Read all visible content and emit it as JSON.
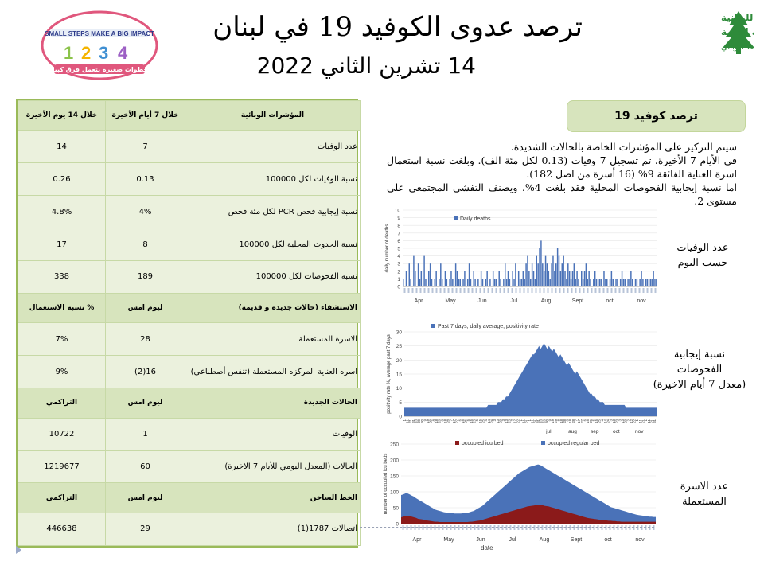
{
  "header": {
    "title": "ترصد عدوى الكوفيد 19 في لبنان",
    "date": "14 تشرين الثاني 2022"
  },
  "logo_left": {
    "arc_text": "SMALL STEPS MAKE A BIG IMPACT",
    "bottom_text": "خطوات صغيرة بتعمل فرق كبير"
  },
  "logo_right": {
    "line1": "الجمهورية اللبنانية",
    "line2": "وزارة الصحة العامة",
    "line3": "برنامج الترصد الوبائي"
  },
  "table": {
    "rows": [
      {
        "type": "header",
        "cells": [
          "المؤشرات الوبائية",
          "خلال 7 أيام الأخيرة",
          "خلال 14 يوم الأخيرة"
        ]
      },
      {
        "type": "data",
        "cells": [
          "عدد الوفيات",
          "7",
          "14"
        ]
      },
      {
        "type": "data",
        "cells": [
          "نسبة الوفيات لكل 100000",
          "0.13",
          "0.26"
        ]
      },
      {
        "type": "data",
        "cells": [
          "نسبة إيجابية فحص PCR لكل مئة فحص",
          "4%",
          "4.8%"
        ]
      },
      {
        "type": "data",
        "cells": [
          "نسبة الحدوث المحلية لكل 100000",
          "8",
          "17"
        ]
      },
      {
        "type": "data",
        "cells": [
          "نسبة الفحوصات لكل 100000",
          "189",
          "338"
        ]
      },
      {
        "type": "header",
        "cells": [
          "الاستشفاء (حالات جديدة و قديمة)",
          "ليوم امس",
          "% نسبة الاستعمال"
        ]
      },
      {
        "type": "data",
        "cells": [
          "الاسرة المستعملة",
          "28",
          "7%"
        ]
      },
      {
        "type": "data",
        "cells": [
          "اسره العناية المركزه المستعملة (تنفس أصطناعي)",
          "16(2)",
          "9%"
        ]
      },
      {
        "type": "header",
        "cells": [
          "الحالات الجديدة",
          "ليوم امس",
          "التراكمي"
        ]
      },
      {
        "type": "data",
        "cells": [
          "الوفيات",
          "1",
          "10722"
        ]
      },
      {
        "type": "data",
        "cells": [
          "الحالات (المعدل اليومي للأيام 7 الاخيرة)",
          "60",
          "1219677"
        ]
      },
      {
        "type": "header",
        "cells": [
          "الخط الساخن",
          "ليوم امس",
          "التراكمي"
        ]
      },
      {
        "type": "data",
        "cells": [
          "اتصالات 1787(1)",
          "29",
          "446638"
        ]
      }
    ]
  },
  "panel": {
    "tag": "ترصد كوفيد 19",
    "paragraphs": [
      "سيتم التركيز على المؤشرات الخاصة بالحالات الشديدة.",
      "في الأيام 7 الأخيرة، تم تسجيل 7 وفيات (0.13 لكل مئة الف). وبلغت نسبة استعمال اسرة العناية الفائقة 9% (16 أسرة من اصل 182).",
      "اما نسبة إيجابية الفحوصات المحلية فقد بلغت 4%. ويصنف التفشي المجتمعي على مستوى 2."
    ]
  },
  "side_labels": {
    "deaths": [
      "عدد الوفيات",
      "حسب اليوم"
    ],
    "positivity": [
      "نسبة إيجابية",
      "الفحوصات",
      "(معدل 7 أيام الاخيرة)"
    ],
    "beds": [
      "عدد الاسرة",
      "المستعملة"
    ]
  },
  "chart_data": [
    {
      "type": "bar",
      "legend": [
        "Daily deaths"
      ],
      "ylabel": "daily number of deaths",
      "ylim": [
        0,
        10
      ],
      "yticks": [
        "0",
        "1",
        "2",
        "3",
        "4",
        "5",
        "6",
        "7",
        "8",
        "9",
        "10"
      ],
      "months": [
        "Apr",
        "May",
        "Jun",
        "Jul",
        "Aug",
        "Sept",
        "oct",
        "nov"
      ],
      "values": [
        1,
        0,
        2,
        0,
        3,
        1,
        0,
        4,
        2,
        0,
        3,
        1,
        2,
        0,
        4,
        1,
        0,
        2,
        3,
        1,
        0,
        1,
        2,
        0,
        1,
        3,
        1,
        0,
        2,
        1,
        0,
        1,
        2,
        1,
        0,
        3,
        2,
        1,
        1,
        0,
        1,
        2,
        0,
        1,
        3,
        1,
        0,
        2,
        1,
        0,
        1,
        0,
        2,
        1,
        0,
        1,
        2,
        0,
        1,
        0,
        2,
        1,
        1,
        0,
        2,
        1,
        0,
        1,
        3,
        1,
        2,
        1,
        0,
        2,
        1,
        3,
        0,
        2,
        1,
        1,
        2,
        1,
        3,
        4,
        2,
        1,
        3,
        2,
        1,
        4,
        3,
        5,
        6,
        3,
        2,
        4,
        3,
        2,
        1,
        3,
        4,
        2,
        3,
        5,
        4,
        2,
        3,
        4,
        2,
        1,
        3,
        2,
        1,
        2,
        3,
        1,
        2,
        1,
        0,
        2,
        1,
        2,
        3,
        1,
        2,
        1,
        0,
        1,
        2,
        1,
        0,
        1,
        1,
        0,
        2,
        1,
        1,
        0,
        1,
        2,
        1,
        0,
        1,
        1,
        0,
        1,
        2,
        1,
        1,
        0,
        1,
        1,
        2,
        1,
        0,
        1,
        1,
        0,
        1,
        2,
        1,
        0,
        1,
        1,
        0,
        1,
        1,
        2,
        1,
        1
      ]
    },
    {
      "type": "area",
      "legend": [
        "Past 7 days, daily average, positivity rate"
      ],
      "ylabel": "positivity rate %, average past 7 days",
      "ylim": [
        0,
        30
      ],
      "yticks": [
        "0",
        "5",
        "10",
        "15",
        "20",
        "25",
        "30"
      ],
      "xticks": [
        "1",
        "11",
        "21",
        "31",
        "10",
        "20",
        "30",
        "9",
        "19",
        "29",
        "8",
        "18",
        "28",
        "8",
        "18",
        "28",
        "7",
        "17",
        "27",
        "6",
        "16",
        "26",
        "5",
        "15",
        "25",
        "5",
        "15",
        "25",
        "4",
        "14",
        "24",
        "3",
        "13",
        "23",
        "3",
        "13",
        "23",
        "2",
        "12",
        "22",
        "1",
        "11",
        "21",
        "1",
        "11",
        "21",
        "31",
        "10",
        "20",
        "30",
        "9",
        "19",
        "29",
        "8",
        "18",
        "28",
        "8",
        "18",
        "28",
        "7",
        "17",
        "27",
        "6",
        "16",
        "26",
        "5",
        "15",
        "25",
        "4",
        "14",
        "24",
        "3",
        "13",
        "23",
        "3",
        "13",
        "23",
        "2",
        "12",
        "22",
        "1",
        "11",
        "21",
        "1",
        "11",
        "21",
        "31"
      ],
      "months": [
        "jul",
        "aug",
        "sep",
        "oct",
        "nov"
      ],
      "values": [
        3,
        3,
        3,
        3,
        3,
        3,
        3,
        3,
        3,
        3,
        3,
        3,
        3,
        3,
        3,
        3,
        3,
        3,
        3,
        3,
        3,
        3,
        3,
        3,
        3,
        3,
        3,
        3,
        3,
        3,
        3,
        3,
        3,
        3,
        3,
        3,
        3,
        3,
        3,
        3,
        3,
        3,
        3,
        3,
        3,
        3,
        3,
        3,
        3,
        3,
        3,
        4,
        4,
        4,
        4,
        4,
        4,
        5,
        5,
        5,
        6,
        6,
        7,
        7,
        8,
        9,
        10,
        11,
        12,
        13,
        14,
        15,
        16,
        17,
        18,
        19,
        20,
        21,
        22,
        22,
        23,
        24,
        25,
        24,
        25,
        26,
        25,
        24,
        25,
        24,
        23,
        24,
        23,
        22,
        21,
        22,
        21,
        20,
        19,
        18,
        19,
        18,
        17,
        16,
        15,
        16,
        15,
        14,
        13,
        12,
        11,
        10,
        9,
        8,
        8,
        7,
        7,
        6,
        6,
        5,
        5,
        5,
        4,
        4,
        4,
        4,
        4,
        4,
        4,
        4,
        4,
        4,
        4,
        4,
        4,
        3,
        3,
        3,
        3,
        3,
        3,
        3,
        3,
        3,
        3,
        3,
        3,
        3,
        3,
        3,
        3,
        3,
        3,
        3,
        3
      ]
    },
    {
      "type": "area",
      "legend": [
        "occupied icu bed",
        "occupied regular bed"
      ],
      "xlabel": "date",
      "ylabel": "number of occupied icu beds",
      "ylim": [
        0,
        250
      ],
      "yticks": [
        "0",
        "50",
        "100",
        "150",
        "200",
        "250"
      ],
      "months": [
        "Apr",
        "May",
        "Jun",
        "Jul",
        "Aug",
        "Sept",
        "oct",
        "nov"
      ],
      "series": [
        {
          "name": "occupied icu bed",
          "values": [
            20,
            22,
            24,
            25,
            24,
            22,
            20,
            18,
            15,
            14,
            13,
            12,
            10,
            9,
            8,
            7,
            6,
            6,
            5,
            5,
            5,
            5,
            5,
            5,
            5,
            5,
            5,
            5,
            5,
            5,
            5,
            5,
            6,
            6,
            7,
            8,
            9,
            10,
            12,
            14,
            16,
            18,
            20,
            22,
            24,
            26,
            28,
            30,
            32,
            34,
            36,
            38,
            40,
            42,
            44,
            46,
            48,
            50,
            52,
            54,
            55,
            56,
            57,
            58,
            60,
            60,
            58,
            56,
            55,
            54,
            52,
            50,
            48,
            46,
            44,
            42,
            40,
            38,
            36,
            34,
            32,
            30,
            28,
            26,
            24,
            22,
            20,
            18,
            17,
            16,
            15,
            14,
            13,
            12,
            11,
            10,
            10,
            9,
            9,
            8,
            8,
            7,
            7,
            6,
            6,
            6,
            6,
            6,
            6,
            6,
            6,
            6,
            6,
            6,
            6,
            6,
            6,
            6,
            6,
            6
          ]
        },
        {
          "name": "occupied regular bed",
          "values": [
            90,
            92,
            95,
            95,
            92,
            88,
            85,
            80,
            76,
            72,
            68,
            64,
            60,
            56,
            52,
            48,
            44,
            42,
            40,
            38,
            36,
            35,
            34,
            33,
            33,
            32,
            32,
            32,
            32,
            33,
            33,
            34,
            36,
            38,
            40,
            44,
            48,
            52,
            56,
            62,
            68,
            74,
            80,
            86,
            92,
            98,
            104,
            110,
            116,
            122,
            128,
            134,
            140,
            146,
            152,
            158,
            162,
            166,
            170,
            174,
            178,
            180,
            182,
            184,
            186,
            184,
            180,
            176,
            172,
            168,
            164,
            160,
            156,
            152,
            148,
            144,
            140,
            136,
            132,
            128,
            124,
            120,
            116,
            112,
            108,
            104,
            100,
            96,
            92,
            88,
            84,
            80,
            76,
            72,
            68,
            64,
            60,
            56,
            52,
            50,
            48,
            46,
            44,
            42,
            40,
            38,
            36,
            34,
            32,
            30,
            28,
            27,
            26,
            25,
            24,
            23,
            22,
            22,
            21,
            21
          ]
        }
      ]
    }
  ]
}
